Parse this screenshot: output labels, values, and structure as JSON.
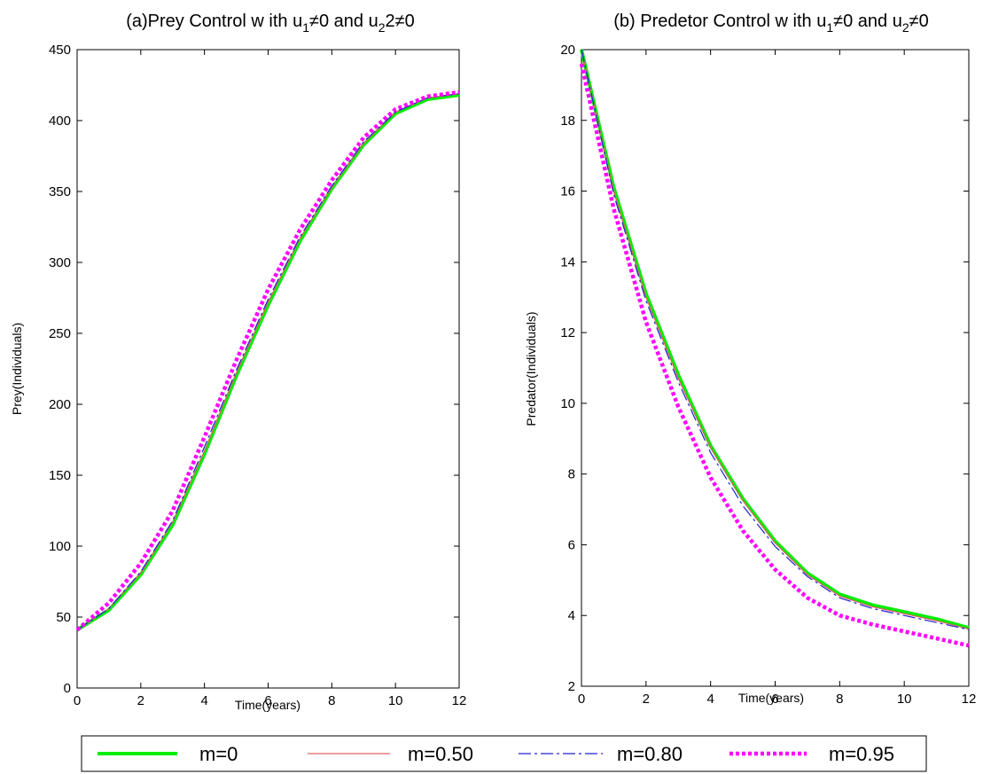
{
  "chart_data": [
    {
      "type": "line",
      "title_prefix": "(a)Prey Control w ith u",
      "title_sub1": "1",
      "title_mid": "≠0 and u",
      "title_sub2": "2",
      "title_suffix": "2≠0",
      "xlabel": "Time(years)",
      "ylabel": "Prey(Individuals)",
      "xlim": [
        0,
        12
      ],
      "ylim": [
        0,
        450
      ],
      "xticks": [
        0,
        2,
        4,
        6,
        8,
        10,
        12
      ],
      "yticks": [
        0,
        50,
        100,
        150,
        200,
        250,
        300,
        350,
        400,
        450
      ],
      "grid": false,
      "series": [
        {
          "name": "m=0",
          "color": "#00ee00",
          "style": "solid-thick",
          "x": [
            0,
            1,
            2,
            3,
            4,
            5,
            6,
            7,
            8,
            9,
            10,
            11,
            12
          ],
          "y": [
            41,
            55,
            80,
            115,
            165,
            220,
            270,
            315,
            352,
            383,
            405,
            415,
            418
          ]
        },
        {
          "name": "m=0.50",
          "color": "#e06060",
          "style": "solid-thin",
          "x": [
            0,
            1,
            2,
            3,
            4,
            5,
            6,
            7,
            8,
            9,
            10,
            11,
            12
          ],
          "y": [
            41,
            56,
            81,
            117,
            167,
            222,
            272,
            317,
            353,
            384,
            406,
            416,
            419
          ]
        },
        {
          "name": "m=0.80",
          "color": "#2020d0",
          "style": "dashdot",
          "x": [
            0,
            1,
            2,
            3,
            4,
            5,
            6,
            7,
            8,
            9,
            10,
            11,
            12
          ],
          "y": [
            41,
            56,
            82,
            118,
            170,
            224,
            274,
            318,
            354,
            385,
            406,
            416,
            419
          ]
        },
        {
          "name": "m=0.95",
          "color": "#ff00ff",
          "style": "dotted",
          "x": [
            0,
            1,
            2,
            3,
            4,
            5,
            6,
            7,
            8,
            9,
            10,
            11,
            12
          ],
          "y": [
            41,
            60,
            88,
            125,
            177,
            231,
            281,
            323,
            358,
            388,
            408,
            417,
            420
          ]
        }
      ]
    },
    {
      "type": "line",
      "title_prefix": "(b) Predetor Control w ith u",
      "title_sub1": "1",
      "title_mid": "≠0 and u",
      "title_sub2": "2",
      "title_suffix": "≠0",
      "xlabel": "Time(years)",
      "ylabel": "Predator(Individuals)",
      "xlim": [
        0,
        12
      ],
      "ylim": [
        2,
        20
      ],
      "xticks": [
        0,
        2,
        4,
        6,
        8,
        10,
        12
      ],
      "yticks": [
        2,
        4,
        6,
        8,
        10,
        12,
        14,
        16,
        18,
        20
      ],
      "grid": false,
      "series": [
        {
          "name": "m=0",
          "color": "#00ee00",
          "style": "solid-thick",
          "x": [
            0,
            1,
            2,
            3,
            4,
            5,
            6,
            7,
            8,
            9,
            10,
            11,
            12
          ],
          "y": [
            20,
            16.1,
            13.1,
            10.8,
            8.8,
            7.3,
            6.1,
            5.2,
            4.6,
            4.3,
            4.1,
            3.9,
            3.65
          ]
        },
        {
          "name": "m=0.50",
          "color": "#e06060",
          "style": "solid-thin",
          "x": [
            0,
            1,
            2,
            3,
            4,
            5,
            6,
            7,
            8,
            9,
            10,
            11,
            12
          ],
          "y": [
            20,
            16.0,
            13.0,
            10.7,
            8.75,
            7.25,
            6.05,
            5.15,
            4.55,
            4.25,
            4.05,
            3.85,
            3.62
          ]
        },
        {
          "name": "m=0.80",
          "color": "#2020d0",
          "style": "dashdot",
          "x": [
            0,
            1,
            2,
            3,
            4,
            5,
            6,
            7,
            8,
            9,
            10,
            11,
            12
          ],
          "y": [
            20,
            15.9,
            12.9,
            10.6,
            8.6,
            7.1,
            5.95,
            5.1,
            4.5,
            4.2,
            4.0,
            3.8,
            3.6
          ]
        },
        {
          "name": "m=0.95",
          "color": "#ff00ff",
          "style": "dotted",
          "x": [
            0,
            1,
            2,
            3,
            4,
            5,
            6,
            7,
            8,
            9,
            10,
            11,
            12
          ],
          "y": [
            19.6,
            15.5,
            12.3,
            9.9,
            7.9,
            6.4,
            5.3,
            4.5,
            4.0,
            3.75,
            3.55,
            3.35,
            3.15
          ]
        }
      ]
    }
  ],
  "legend": {
    "placement": "bottom",
    "items": [
      "m=0",
      "m=0.50",
      "m=0.80",
      "m=0.95"
    ]
  }
}
